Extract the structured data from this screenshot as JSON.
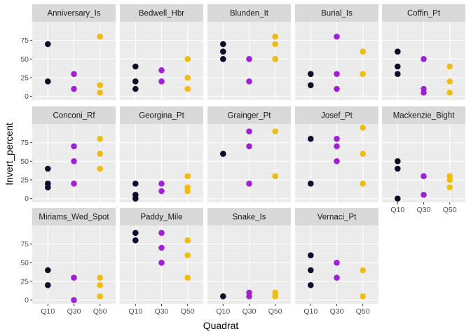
{
  "chart_data": {
    "type": "scatter",
    "facet_wrap": true,
    "xlabel": "Quadrat",
    "ylabel": "Invert_percent",
    "x_categories": [
      "Q10",
      "Q30",
      "Q50"
    ],
    "ylim": [
      -5,
      100
    ],
    "yticks": [
      0,
      25,
      50,
      75
    ],
    "grid": true,
    "legend": "none",
    "colors": {
      "Q10": "#0d0d2b",
      "Q30": "#a21fd8",
      "Q50": "#f0bc0f"
    },
    "facets": [
      {
        "name": "Anniversary_Is",
        "points": {
          "Q10": [
            70,
            20
          ],
          "Q30": [
            30,
            10
          ],
          "Q50": [
            80,
            15,
            5
          ]
        }
      },
      {
        "name": "Bedwell_Hbr",
        "points": {
          "Q10": [
            40,
            20,
            10
          ],
          "Q30": [
            35,
            20
          ],
          "Q50": [
            50,
            25,
            10
          ]
        }
      },
      {
        "name": "Blunden_It",
        "points": {
          "Q10": [
            70,
            60,
            50
          ],
          "Q30": [
            50,
            20
          ],
          "Q50": [
            80,
            70,
            50
          ]
        }
      },
      {
        "name": "Burial_Is",
        "points": {
          "Q10": [
            30,
            15
          ],
          "Q30": [
            80,
            30,
            10
          ],
          "Q50": [
            60,
            30
          ]
        }
      },
      {
        "name": "Coffin_Pt",
        "points": {
          "Q10": [
            60,
            40,
            30
          ],
          "Q30": [
            50,
            10,
            5
          ],
          "Q50": [
            40,
            20,
            5
          ]
        }
      },
      {
        "name": "Conconi_Rf",
        "points": {
          "Q10": [
            40,
            20,
            15
          ],
          "Q30": [
            70,
            50,
            20
          ],
          "Q50": [
            80,
            60,
            40
          ]
        }
      },
      {
        "name": "Georgina_Pt",
        "points": {
          "Q10": [
            20,
            5,
            0
          ],
          "Q30": [
            20,
            10
          ],
          "Q50": [
            30,
            15,
            10
          ]
        }
      },
      {
        "name": "Grainger_Pt",
        "points": {
          "Q10": [
            60
          ],
          "Q30": [
            90,
            70,
            20
          ],
          "Q50": [
            90,
            30
          ]
        }
      },
      {
        "name": "Josef_Pt",
        "points": {
          "Q10": [
            80,
            20
          ],
          "Q30": [
            80,
            70,
            50
          ],
          "Q50": [
            95,
            60,
            20
          ]
        }
      },
      {
        "name": "Mackenzie_Bight",
        "points": {
          "Q10": [
            50,
            40,
            0
          ],
          "Q30": [
            30,
            5
          ],
          "Q50": [
            30,
            25,
            15
          ]
        }
      },
      {
        "name": "Miriams_Wed_Spot",
        "points": {
          "Q10": [
            40,
            20
          ],
          "Q30": [
            30,
            0
          ],
          "Q50": [
            30,
            20,
            5
          ]
        }
      },
      {
        "name": "Paddy_Mile",
        "points": {
          "Q10": [
            90,
            80
          ],
          "Q30": [
            90,
            70,
            50
          ],
          "Q50": [
            80,
            60,
            30
          ]
        }
      },
      {
        "name": "Snake_Is",
        "points": {
          "Q10": [
            5
          ],
          "Q30": [
            10,
            5
          ],
          "Q50": [
            10,
            5
          ]
        }
      },
      {
        "name": "Vernaci_Pt",
        "points": {
          "Q10": [
            60,
            40,
            20
          ],
          "Q30": [
            50,
            30
          ],
          "Q50": [
            40,
            5
          ]
        }
      }
    ]
  }
}
